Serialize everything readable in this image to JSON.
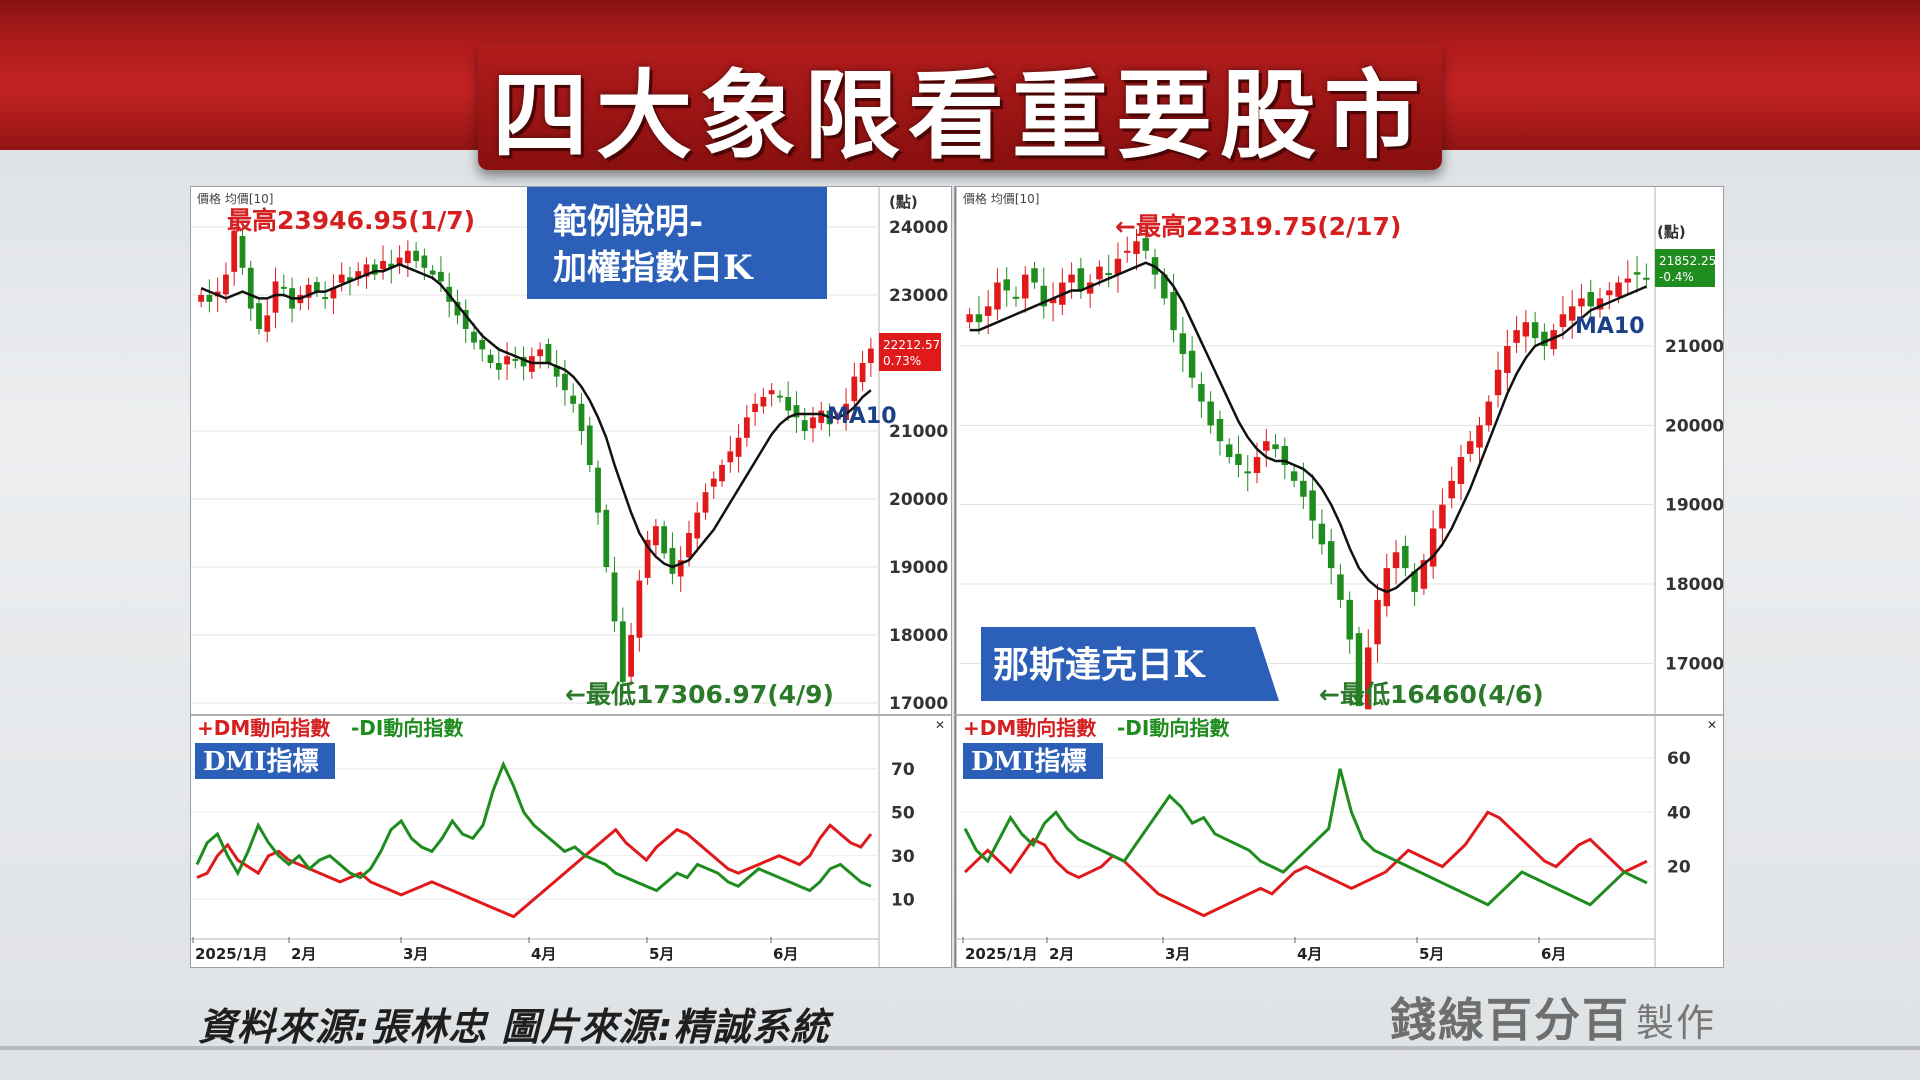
{
  "title": "四大象限看重要股市",
  "source_text": "資料來源:張林忠 圖片來源:精誠系統",
  "brand": {
    "name": "錢線百分百",
    "suffix": "製作"
  },
  "colors": {
    "up": "#e0191b",
    "down": "#1e8c1e",
    "ma": "#111111",
    "label_blue": "#2c5fb8",
    "max_red": "#d42020"
  },
  "chart_data": [
    {
      "type": "candlestick",
      "name_line1": "範例說明-",
      "name_line2": "加權指數日K",
      "axis_header": "價格 均價[10]",
      "unit_label": "(點)",
      "ylim": [
        17000,
        24000
      ],
      "y_ticks": [
        24000,
        23000,
        21000,
        20000,
        19000,
        18000,
        17000
      ],
      "x_ticks": [
        "2025/1月",
        "2月",
        "3月",
        "4月",
        "5月",
        "6月"
      ],
      "max_label": "最高23946.95(1/7)",
      "min_label": "←最低17306.97(4/9)",
      "ma_label": "MA10",
      "last_price": "22212.57",
      "last_change": "0.73%",
      "closes": [
        23000,
        22900,
        23050,
        23300,
        23946.95,
        23400,
        22800,
        22500,
        22700,
        23200,
        23100,
        22800,
        23000,
        23150,
        23050,
        22950,
        23100,
        23300,
        23200,
        23350,
        23450,
        23300,
        23500,
        23400,
        23550,
        23650,
        23500,
        23400,
        23300,
        23200,
        22900,
        22700,
        22500,
        22300,
        22200,
        22000,
        21900,
        22100,
        22050,
        21950,
        22100,
        22200,
        22000,
        21800,
        21600,
        21400,
        21000,
        20500,
        19800,
        19000,
        18200,
        17306.97,
        18000,
        18800,
        19400,
        19600,
        19200,
        18900,
        19100,
        19500,
        19800,
        20100,
        20300,
        20500,
        20700,
        20900,
        21200,
        21400,
        21500,
        21600,
        21500,
        21300,
        21200,
        21000,
        21200,
        21300,
        21100,
        21200,
        21400,
        21800,
        22000,
        22212.57
      ],
      "ma10": [
        23100,
        23050,
        23000,
        22950,
        23000,
        23050,
        23000,
        22950,
        22950,
        23000,
        23000,
        22950,
        22950,
        23000,
        23050,
        23050,
        23100,
        23150,
        23200,
        23250,
        23300,
        23350,
        23350,
        23400,
        23450,
        23400,
        23350,
        23300,
        23250,
        23150,
        23000,
        22850,
        22700,
        22550,
        22400,
        22300,
        22200,
        22150,
        22100,
        22050,
        22000,
        22000,
        22000,
        21950,
        21900,
        21800,
        21650,
        21450,
        21200,
        20900,
        20500,
        20150,
        19800,
        19500,
        19300,
        19150,
        19050,
        19000,
        19050,
        19100,
        19250,
        19400,
        19550,
        19750,
        19950,
        20150,
        20350,
        20550,
        20750,
        20950,
        21100,
        21200,
        21250,
        21250,
        21250,
        21250,
        21200,
        21200,
        21250,
        21350,
        21500,
        21600
      ]
    },
    {
      "type": "candlestick",
      "name_line1": "那斯達克日K",
      "axis_header": "價格 均價[10]",
      "unit_label": "(點)",
      "ylim": [
        16500,
        22500
      ],
      "y_ticks": [
        21000,
        20000,
        19000,
        18000,
        17000
      ],
      "x_ticks": [
        "2025/1月",
        "2月",
        "3月",
        "4月",
        "5月",
        "6月"
      ],
      "max_label": "←最高22319.75(2/17)",
      "min_label": "←最低16460(4/6)",
      "ma_label": "MA10",
      "last_price": "21852.25",
      "last_change": "-0.4%",
      "closes": [
        21400,
        21300,
        21500,
        21800,
        21700,
        21600,
        21900,
        21800,
        21500,
        21600,
        21800,
        21900,
        21700,
        21800,
        22000,
        21900,
        22100,
        22200,
        22319.75,
        22200,
        21900,
        21600,
        21200,
        20900,
        20600,
        20300,
        20000,
        19800,
        19600,
        19500,
        19400,
        19600,
        19800,
        19700,
        19500,
        19300,
        19100,
        18800,
        18500,
        18200,
        17800,
        17300,
        16460,
        17200,
        17800,
        18200,
        18400,
        18200,
        17900,
        18300,
        18700,
        19000,
        19300,
        19600,
        19800,
        20000,
        20300,
        20700,
        21000,
        21200,
        21300,
        21100,
        21000,
        21200,
        21400,
        21500,
        21600,
        21500,
        21600,
        21700,
        21800,
        21850,
        21900,
        21852.25
      ],
      "ma10": [
        21200,
        21200,
        21250,
        21300,
        21350,
        21400,
        21450,
        21500,
        21550,
        21600,
        21650,
        21700,
        21700,
        21750,
        21800,
        21850,
        21900,
        21950,
        22000,
        22050,
        22000,
        21900,
        21750,
        21550,
        21300,
        21050,
        20800,
        20550,
        20300,
        20050,
        19850,
        19700,
        19600,
        19550,
        19550,
        19500,
        19450,
        19350,
        19200,
        19000,
        18750,
        18450,
        18200,
        18050,
        17950,
        17900,
        17950,
        18050,
        18150,
        18250,
        18350,
        18500,
        18700,
        18950,
        19200,
        19500,
        19800,
        20100,
        20400,
        20650,
        20850,
        21000,
        21050,
        21100,
        21150,
        21250,
        21350,
        21450,
        21500,
        21550,
        21600,
        21650,
        21700,
        21750
      ]
    },
    {
      "type": "line",
      "panel": "DMI",
      "indicator_label": "DMI指標",
      "legend_plus": "+DM動向指數",
      "legend_minus": "-DI動向指數",
      "ylim": [
        0,
        80
      ],
      "y_ticks": [
        70,
        50,
        30,
        10
      ],
      "x_ticks": [
        "2025/1月",
        "2月",
        "3月",
        "4月",
        "5月",
        "6月"
      ],
      "series": [
        {
          "name": "+DM動向指數",
          "values": [
            20,
            22,
            30,
            35,
            28,
            25,
            22,
            30,
            32,
            28,
            26,
            24,
            22,
            20,
            18,
            20,
            22,
            18,
            16,
            14,
            12,
            14,
            16,
            18,
            16,
            14,
            12,
            10,
            8,
            6,
            4,
            2,
            6,
            10,
            14,
            18,
            22,
            26,
            30,
            34,
            38,
            42,
            36,
            32,
            28,
            34,
            38,
            42,
            40,
            36,
            32,
            28,
            24,
            22,
            24,
            26,
            28,
            30,
            28,
            26,
            30,
            38,
            44,
            40,
            36,
            34,
            40
          ]
        },
        {
          "name": "-DI動向指數",
          "values": [
            26,
            36,
            40,
            30,
            22,
            32,
            44,
            36,
            30,
            26,
            30,
            24,
            28,
            30,
            26,
            22,
            20,
            24,
            32,
            42,
            46,
            38,
            34,
            32,
            38,
            46,
            40,
            38,
            44,
            60,
            72,
            62,
            50,
            44,
            40,
            36,
            32,
            34,
            30,
            28,
            26,
            22,
            20,
            18,
            16,
            14,
            18,
            22,
            20,
            26,
            24,
            22,
            18,
            16,
            20,
            24,
            22,
            20,
            18,
            16,
            14,
            18,
            24,
            26,
            22,
            18,
            16
          ]
        }
      ]
    },
    {
      "type": "line",
      "panel": "DMI",
      "indicator_label": "DMI指標",
      "legend_plus": "+DM動向指數",
      "legend_minus": "-DI動向指數",
      "ylim": [
        0,
        64
      ],
      "y_ticks": [
        60,
        40,
        20
      ],
      "x_ticks": [
        "2025/1月",
        "2月",
        "3月",
        "4月",
        "5月",
        "6月"
      ],
      "series": [
        {
          "name": "+DM動向指數",
          "values": [
            18,
            22,
            26,
            22,
            18,
            24,
            30,
            28,
            22,
            18,
            16,
            18,
            20,
            24,
            22,
            18,
            14,
            10,
            8,
            6,
            4,
            2,
            4,
            6,
            8,
            10,
            12,
            10,
            14,
            18,
            20,
            18,
            16,
            14,
            12,
            14,
            16,
            18,
            22,
            26,
            24,
            22,
            20,
            24,
            28,
            34,
            40,
            38,
            34,
            30,
            26,
            22,
            20,
            24,
            28,
            30,
            26,
            22,
            18,
            20,
            22
          ]
        },
        {
          "name": "-DI動向指數",
          "values": [
            34,
            26,
            22,
            30,
            38,
            32,
            28,
            36,
            40,
            34,
            30,
            28,
            26,
            24,
            22,
            28,
            34,
            40,
            46,
            42,
            36,
            38,
            32,
            30,
            28,
            26,
            22,
            20,
            18,
            22,
            26,
            30,
            34,
            56,
            40,
            30,
            26,
            24,
            22,
            20,
            18,
            16,
            14,
            12,
            10,
            8,
            6,
            10,
            14,
            18,
            16,
            14,
            12,
            10,
            8,
            6,
            10,
            14,
            18,
            16,
            14
          ]
        }
      ]
    }
  ]
}
